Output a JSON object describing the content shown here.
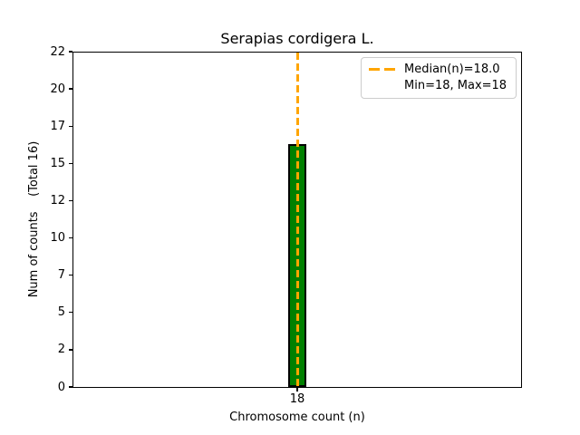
{
  "chart_data": {
    "type": "bar",
    "title": "Serapias cordigera L.",
    "xlabel": "Chromosome count (n)",
    "ylabel": "Num of counts    (Total 16)",
    "categories": [
      "18"
    ],
    "values": [
      16
    ],
    "total_counts": 16,
    "ylim": [
      0,
      22
    ],
    "yticks": [
      "0",
      "2",
      "5",
      "7",
      "10",
      "12",
      "15",
      "17",
      "20",
      "22"
    ],
    "median": "18.0",
    "min": "18",
    "max": "18",
    "grid": false,
    "colors": {
      "bar_fill": "#008000",
      "bar_edge": "#000000",
      "median_line": "#FFA500",
      "legend_border": "#cccccc",
      "text": "#000000",
      "background": "#ffffff"
    },
    "legend": {
      "position": "upper right",
      "entries": [
        {
          "label": "Median(n)=18.0",
          "marker": "orange-dashed-line"
        },
        {
          "label": "Min=18, Max=18",
          "marker": "none"
        }
      ]
    }
  }
}
